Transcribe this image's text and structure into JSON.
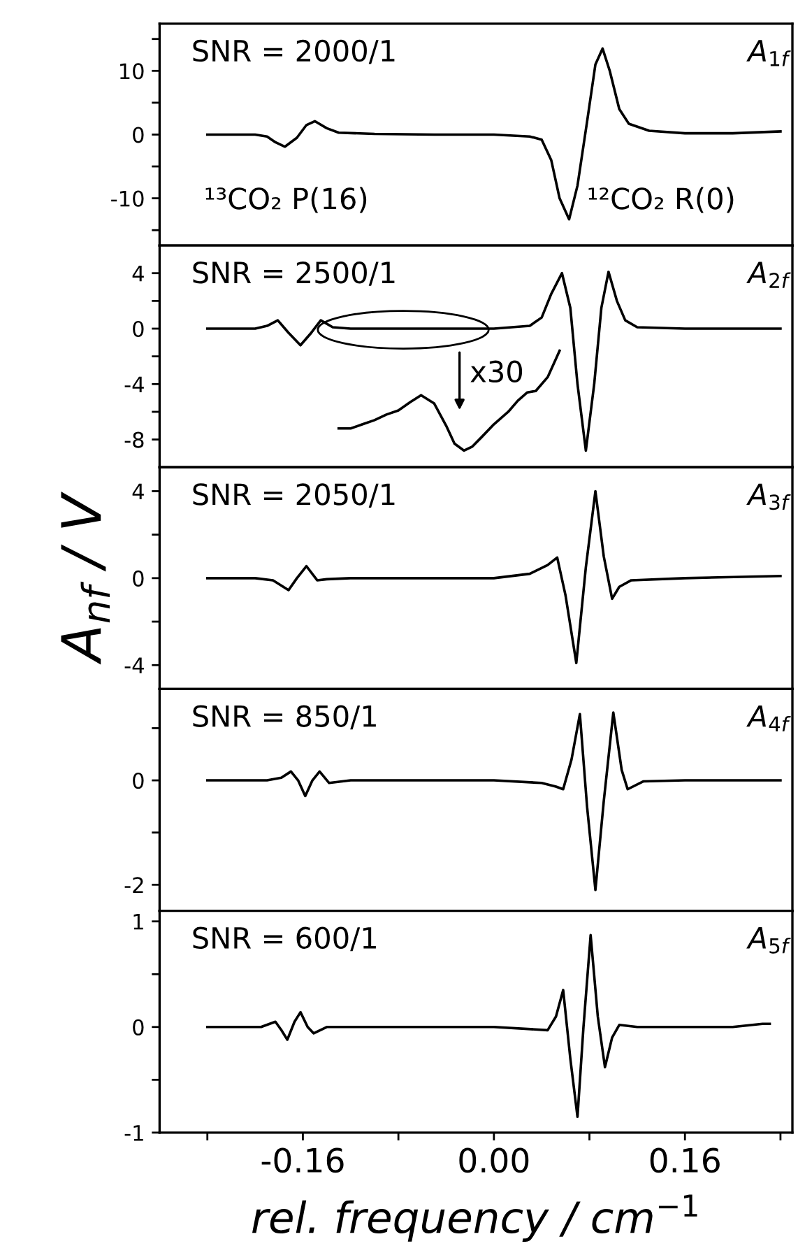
{
  "chart_data": [
    {
      "type": "line",
      "title": "A$_{1f}$",
      "annotations": [
        "SNR = 2000/1",
        "¹³CO₂ P(16)",
        "¹²CO₂ R(0)"
      ],
      "xlim": [
        -0.28,
        0.25
      ],
      "xticks": [
        {
          "value": -0.24,
          "label": null
        },
        {
          "value": -0.16,
          "label": null
        },
        {
          "value": -0.08,
          "label": null
        },
        {
          "value": 0,
          "label": null
        },
        {
          "value": 0.08,
          "label": null
        },
        {
          "value": 0.16,
          "label": null
        },
        {
          "value": 0.24,
          "label": null
        }
      ],
      "ylim": [
        -17.4,
        17.4
      ],
      "yticks": [
        {
          "value": -15,
          "label": null
        },
        -10,
        {
          "value": -5,
          "label": null
        },
        0,
        {
          "value": 5,
          "label": null
        },
        10,
        {
          "value": 15,
          "label": null
        }
      ],
      "tick_labels": "y",
      "grid": false,
      "legend": false,
      "series": [
        {
          "color": "#000000",
          "x": [
            -0.24,
            -0.2,
            -0.19,
            -0.183,
            -0.175,
            -0.165,
            -0.157,
            -0.15,
            -0.14,
            -0.13,
            -0.1,
            -0.05,
            0,
            0.03,
            0.04,
            0.048,
            0.055,
            0.063,
            0.07,
            0.078,
            0.085,
            0.091,
            0.097,
            0.105,
            0.113,
            0.13,
            0.16,
            0.2,
            0.24
          ],
          "values": [
            0,
            0,
            -0.3,
            -1.2,
            -1.9,
            -0.5,
            1.5,
            2.1,
            1.0,
            0.3,
            0.1,
            0,
            0,
            -0.3,
            -0.8,
            -4,
            -10,
            -13.3,
            -8,
            2,
            11,
            13.5,
            10,
            4,
            1.7,
            0.6,
            0.2,
            0.2,
            0.5
          ]
        }
      ]
    },
    {
      "type": "line",
      "title": "A$_{2f}$",
      "annotations": [
        "SNR = 2500/1",
        "x30"
      ],
      "xlim": [
        -0.28,
        0.25
      ],
      "xticks": [
        {
          "value": -0.24,
          "label": null
        },
        {
          "value": -0.16,
          "label": null
        },
        {
          "value": -0.08,
          "label": null
        },
        {
          "value": 0,
          "label": null
        },
        {
          "value": 0.08,
          "label": null
        },
        {
          "value": 0.16,
          "label": null
        },
        {
          "value": 0.24,
          "label": null
        }
      ],
      "ylim": [
        -10,
        6
      ],
      "yticks": [
        -8,
        {
          "value": -6,
          "label": null
        },
        -4,
        {
          "value": -2,
          "label": null
        },
        0,
        {
          "value": 2,
          "label": null
        },
        4
      ],
      "tick_labels": "y",
      "grid": false,
      "legend": false,
      "series": [
        {
          "color": "#000000",
          "x": [
            -0.24,
            -0.2,
            -0.19,
            -0.181,
            -0.172,
            -0.162,
            -0.153,
            -0.145,
            -0.135,
            -0.12,
            -0.05,
            0,
            0.03,
            0.04,
            0.048,
            0.057,
            0.064,
            0.07,
            0.077,
            0.084,
            0.09,
            0.096,
            0.103,
            0.11,
            0.12,
            0.16,
            0.24
          ],
          "values": [
            0,
            0,
            0.2,
            0.6,
            -0.3,
            -1.2,
            -0.3,
            0.6,
            0.1,
            0,
            0,
            0,
            0.2,
            0.8,
            2.5,
            4.0,
            1.5,
            -4,
            -8.8,
            -4,
            1.5,
            4.1,
            2.0,
            0.6,
            0.1,
            0,
            0
          ]
        },
        {
          "color": "#000000",
          "x": [
            -0.13,
            -0.12,
            -0.11,
            -0.1,
            -0.09,
            -0.08,
            -0.07,
            -0.061,
            -0.05,
            -0.04,
            -0.033,
            -0.025,
            -0.018,
            -0.01,
            0,
            0.012,
            0.02,
            0.028,
            0.035,
            0.045,
            0.055
          ],
          "values": [
            -7.2,
            -7.2,
            -6.9,
            -6.6,
            -6.2,
            -5.9,
            -5.3,
            -4.8,
            -5.4,
            -7.0,
            -8.3,
            -8.8,
            -8.5,
            -7.8,
            -6.9,
            -6.0,
            -5.2,
            -4.6,
            -4.5,
            -3.5,
            -1.6
          ]
        }
      ]
    },
    {
      "type": "line",
      "title": "A$_{3f}$",
      "ylabel": "A$_{nf}$ / V",
      "annotations": [
        "SNR = 2050/1"
      ],
      "xlim": [
        -0.28,
        0.25
      ],
      "xticks": [
        {
          "value": -0.24,
          "label": null
        },
        {
          "value": -0.16,
          "label": null
        },
        {
          "value": -0.08,
          "label": null
        },
        {
          "value": 0,
          "label": null
        },
        {
          "value": 0.08,
          "label": null
        },
        {
          "value": 0.16,
          "label": null
        },
        {
          "value": 0.24,
          "label": null
        }
      ],
      "ylim": [
        -5.1,
        5.1
      ],
      "yticks": [
        -4,
        {
          "value": -2,
          "label": null
        },
        0,
        {
          "value": 2,
          "label": null
        },
        4
      ],
      "tick_labels": "y",
      "grid": false,
      "legend": false,
      "series": [
        {
          "color": "#000000",
          "x": [
            -0.24,
            -0.2,
            -0.185,
            -0.172,
            -0.165,
            -0.157,
            -0.148,
            -0.14,
            -0.12,
            -0.05,
            0,
            0.03,
            0.045,
            0.053,
            0.06,
            0.069,
            0.077,
            0.085,
            0.092,
            0.099,
            0.105,
            0.115,
            0.16,
            0.24
          ],
          "values": [
            0,
            0,
            -0.1,
            -0.55,
            0,
            0.55,
            -0.1,
            -0.05,
            0,
            0,
            0,
            0.2,
            0.6,
            0.95,
            -0.8,
            -3.9,
            0.5,
            4.0,
            1.0,
            -0.95,
            -0.4,
            -0.1,
            0,
            0.1
          ]
        }
      ]
    },
    {
      "type": "line",
      "title": "A$_{4f}$",
      "annotations": [
        "SNR = 850/1"
      ],
      "xlim": [
        -0.28,
        0.25
      ],
      "xticks": [
        {
          "value": -0.24,
          "label": null
        },
        {
          "value": -0.16,
          "label": null
        },
        {
          "value": -0.08,
          "label": null
        },
        {
          "value": 0,
          "label": null
        },
        {
          "value": 0.08,
          "label": null
        },
        {
          "value": 0.16,
          "label": null
        },
        {
          "value": 0.24,
          "label": null
        }
      ],
      "ylim": [
        -2.5,
        1.75
      ],
      "yticks": [
        -2,
        {
          "value": -1,
          "label": null
        },
        0,
        {
          "value": 1,
          "label": null
        }
      ],
      "tick_labels": "y",
      "grid": false,
      "legend": false,
      "series": [
        {
          "color": "#000000",
          "x": [
            -0.24,
            -0.19,
            -0.178,
            -0.17,
            -0.164,
            -0.158,
            -0.152,
            -0.146,
            -0.138,
            -0.12,
            -0.05,
            0,
            0.04,
            0.052,
            0.058,
            0.065,
            0.072,
            0.078,
            0.085,
            0.092,
            0.1,
            0.107,
            0.112,
            0.125,
            0.16,
            0.24
          ],
          "values": [
            0,
            0,
            0.05,
            0.17,
            0,
            -0.3,
            0,
            0.17,
            -0.05,
            0,
            0,
            0,
            -0.05,
            -0.12,
            -0.17,
            0.4,
            1.27,
            -0.5,
            -2.1,
            -0.4,
            1.3,
            0.2,
            -0.17,
            -0.02,
            0,
            0
          ]
        }
      ]
    },
    {
      "type": "line",
      "title": "A$_{5f}$",
      "xlabel": "rel. frequency / cm$^{−1}$",
      "annotations": [
        "SNR = 600/1"
      ],
      "xlim": [
        -0.28,
        0.25
      ],
      "xticks": [
        {
          "value": -0.24,
          "label": null
        },
        {
          "value": -0.16,
          "label": "-0.16"
        },
        {
          "value": -0.08,
          "label": null
        },
        {
          "value": 0,
          "label": "0.00"
        },
        {
          "value": 0.08,
          "label": null
        },
        {
          "value": 0.16,
          "label": "0.16"
        },
        {
          "value": 0.24,
          "label": null
        }
      ],
      "ylim": [
        -1,
        1.1
      ],
      "yticks": [
        -1,
        {
          "value": -0.5,
          "label": null
        },
        0,
        {
          "value": 0.5,
          "label": null
        },
        1
      ],
      "grid": false,
      "legend": false,
      "series": [
        {
          "color": "#000000",
          "x": [
            -0.24,
            -0.195,
            -0.183,
            -0.178,
            -0.173,
            -0.167,
            -0.162,
            -0.156,
            -0.151,
            -0.14,
            -0.05,
            0,
            0.045,
            0.052,
            0.058,
            0.064,
            0.07,
            0.075,
            0.081,
            0.087,
            0.093,
            0.099,
            0.105,
            0.12,
            0.2,
            0.225,
            0.231
          ],
          "values": [
            0,
            0,
            0.05,
            -0.03,
            -0.12,
            0.05,
            0.14,
            0,
            -0.06,
            0,
            0,
            0,
            -0.03,
            0.1,
            0.35,
            -0.3,
            -0.85,
            0,
            0.87,
            0.1,
            -0.38,
            -0.1,
            0.02,
            0,
            0,
            0.03,
            0.03
          ]
        }
      ]
    }
  ]
}
